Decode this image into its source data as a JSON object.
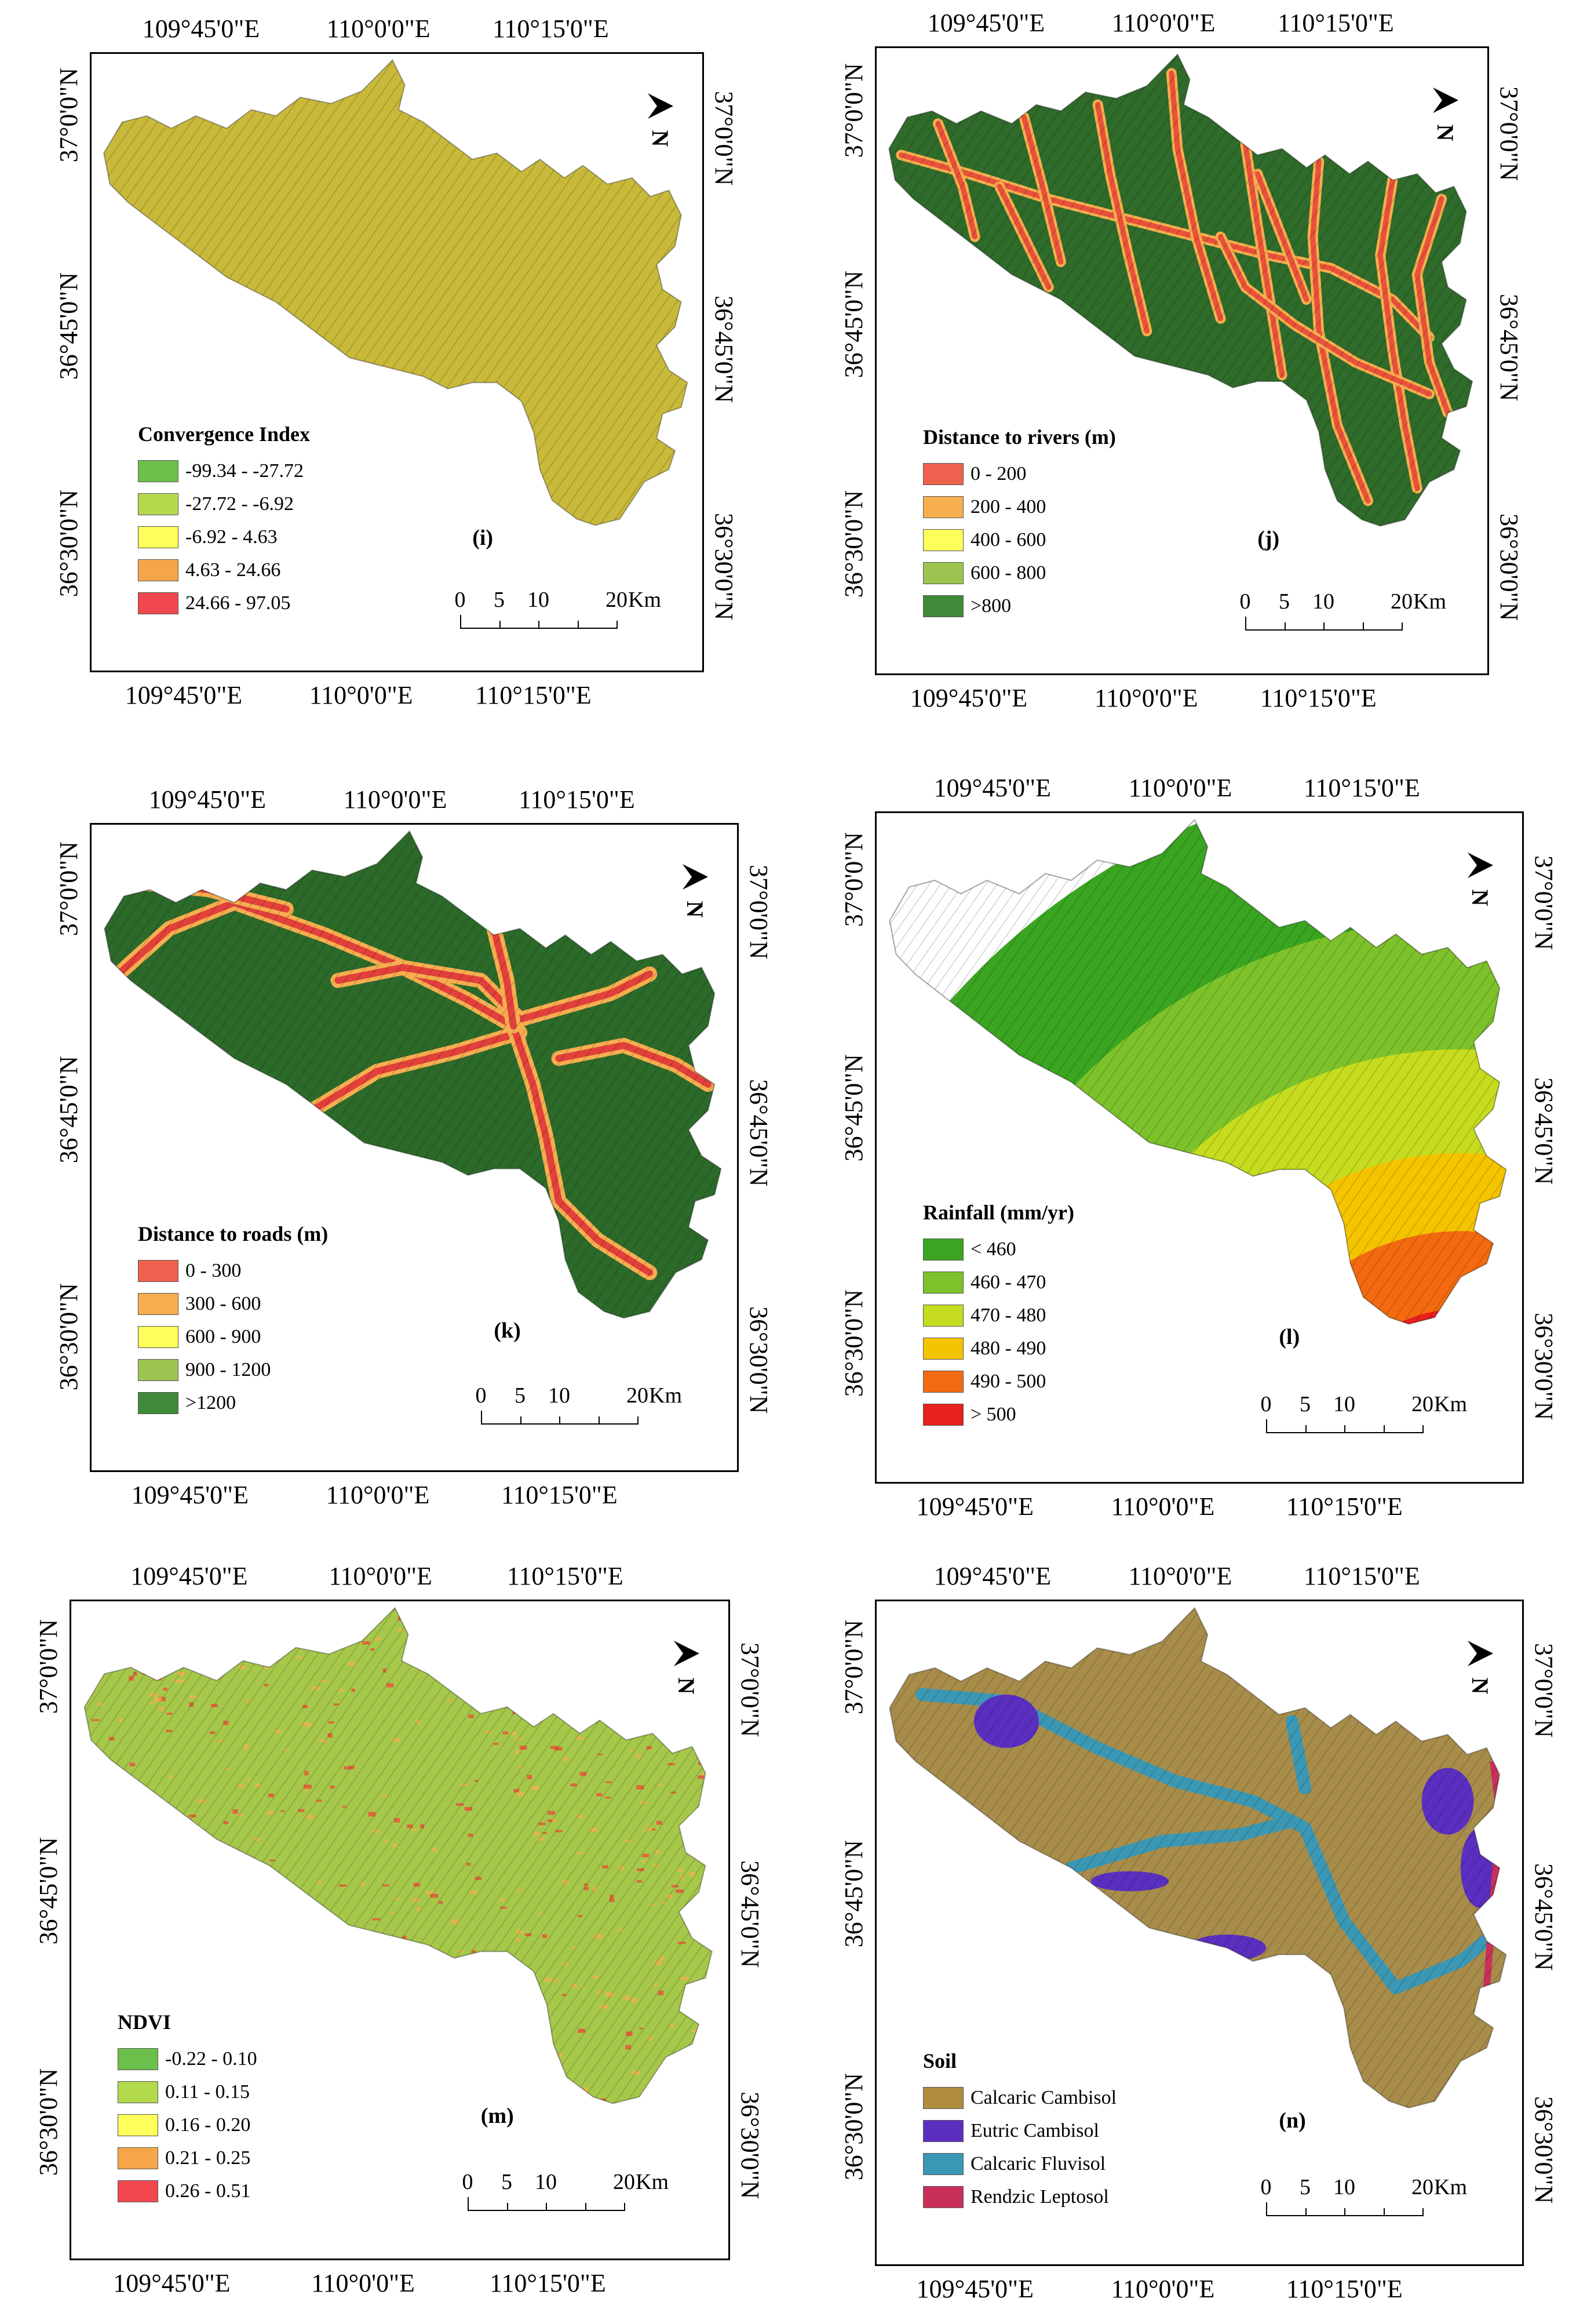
{
  "coords": {
    "lon": [
      "109°45'0\"E",
      "110°0'0\"E",
      "110°15'0\"E"
    ],
    "lat": [
      "37°0'0\"N",
      "36°45'0\"N",
      "36°30'0\"N"
    ]
  },
  "scale_bar": {
    "labels": [
      "0",
      "5",
      "10",
      "20"
    ],
    "unit": "Km"
  },
  "north_arrow": {
    "label": "N",
    "icon": "north-arrow-icon"
  },
  "panels": [
    {
      "label": "(i)",
      "legend_title": "Convergence Index",
      "base_color": "#c8b93a",
      "legend": [
        {
          "text": "-99.34 - -27.72",
          "color": "#6dbf4b"
        },
        {
          "text": "-27.72 - -6.92",
          "color": "#b3d94c"
        },
        {
          "text": "-6.92 - 4.63",
          "color": "#ffff5c"
        },
        {
          "text": "4.63 - 24.66",
          "color": "#f5a64a"
        },
        {
          "text": "24.66 - 97.05",
          "color": "#f0484e"
        }
      ]
    },
    {
      "label": "(j)",
      "legend_title": "Distance to rivers (m)",
      "base_color": "#2f6b2a",
      "line_color": "#e8513a",
      "legend": [
        {
          "text": "0 - 200",
          "color": "#f0604e"
        },
        {
          "text": "200 - 400",
          "color": "#f7ae4f"
        },
        {
          "text": "400 - 600",
          "color": "#ffff5c"
        },
        {
          "text": "600 - 800",
          "color": "#9dc451"
        },
        {
          "text": ">800",
          "color": "#3f8a3a"
        }
      ]
    },
    {
      "label": "(k)",
      "legend_title": "Distance to roads (m)",
      "base_color": "#2c6a2a",
      "line_color": "#e2403a",
      "legend": [
        {
          "text": "0 - 300",
          "color": "#f0604e"
        },
        {
          "text": "300 - 600",
          "color": "#f7ae4f"
        },
        {
          "text": "600 - 900",
          "color": "#ffff5c"
        },
        {
          "text": "900 - 1200",
          "color": "#9dc451"
        },
        {
          "text": ">1200",
          "color": "#3f8a3a"
        }
      ]
    },
    {
      "label": "(l)",
      "legend_title": "Rainfall (mm/yr)",
      "legend": [
        {
          "text": "< 460",
          "color": "#3aa520"
        },
        {
          "text": "460 - 470",
          "color": "#7dc22a"
        },
        {
          "text": "470 - 480",
          "color": "#c6dc1e"
        },
        {
          "text": "480 - 490",
          "color": "#f5c400"
        },
        {
          "text": "490 - 500",
          "color": "#f46a10"
        },
        {
          "text": "> 500",
          "color": "#e8201e"
        }
      ]
    },
    {
      "label": "(m)",
      "legend_title": "NDVI",
      "base_color": "#a6c84a",
      "legend": [
        {
          "text": "-0.22 - 0.10",
          "color": "#6dbf4b"
        },
        {
          "text": "0.11 - 0.15",
          "color": "#b3d94c"
        },
        {
          "text": "0.16 - 0.20",
          "color": "#ffff5c"
        },
        {
          "text": "0.21 - 0.25",
          "color": "#f5a64a"
        },
        {
          "text": "0.26 - 0.51",
          "color": "#f0484e"
        }
      ]
    },
    {
      "label": "(n)",
      "legend_title": "Soil",
      "base_color": "#a88c4a",
      "legend": [
        {
          "text": "Calcaric Cambisol",
          "color": "#b08c3e"
        },
        {
          "text": "Eutric Cambisol",
          "color": "#5a2fc0"
        },
        {
          "text": "Calcaric Fluvisol",
          "color": "#3a98b4"
        },
        {
          "text": "Rendzic Leptosol",
          "color": "#c8305a"
        }
      ]
    }
  ]
}
